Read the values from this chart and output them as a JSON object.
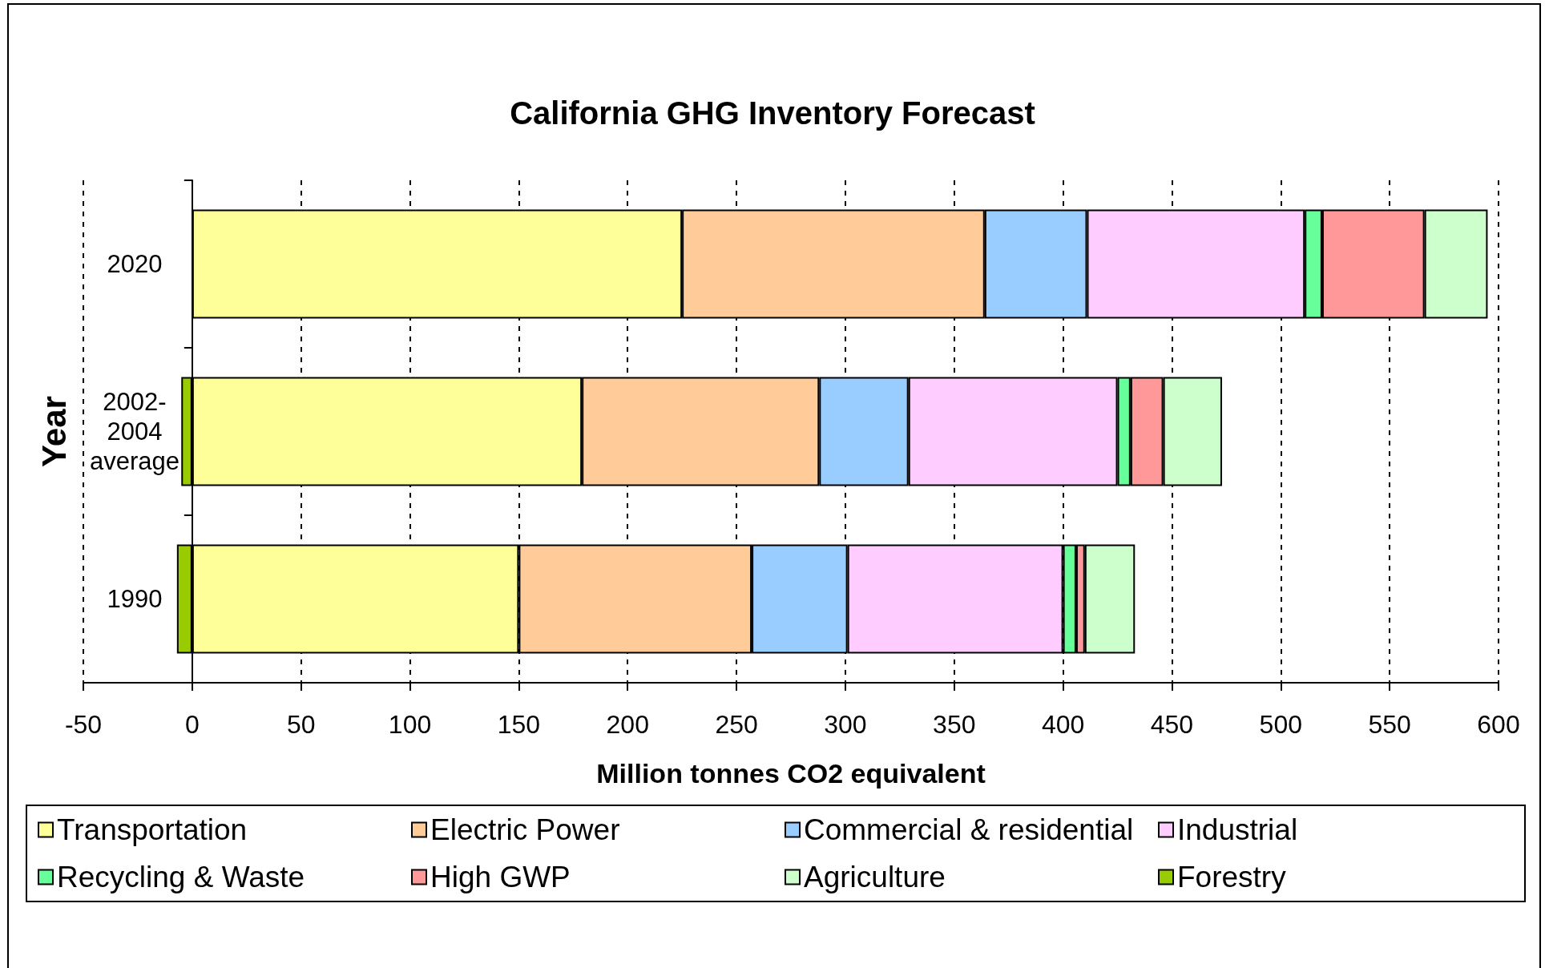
{
  "chart_data": {
    "type": "bar",
    "orientation": "horizontal",
    "stacked": true,
    "title": "California GHG Inventory Forecast",
    "xlabel": "Million tonnes CO2 equivalent",
    "ylabel": "Year",
    "categories": [
      "2020",
      "2002-2004 average",
      "1990"
    ],
    "series": [
      {
        "name": "Transportation",
        "color": "#ffff99",
        "values": [
          225,
          179,
          150
        ]
      },
      {
        "name": "Electric Power",
        "color": "#ffcc99",
        "values": [
          139,
          109,
          107
        ]
      },
      {
        "name": "Commercial & residential",
        "color": "#99ccff",
        "values": [
          47,
          41,
          44
        ]
      },
      {
        "name": "Industrial",
        "color": "#ffccff",
        "values": [
          100,
          96,
          99
        ]
      },
      {
        "name": "Recycling & Waste",
        "color": "#66ff99",
        "values": [
          8,
          6,
          6
        ]
      },
      {
        "name": "High GWP",
        "color": "#ff9999",
        "values": [
          47,
          15,
          4
        ]
      },
      {
        "name": "Agriculture",
        "color": "#ccffcc",
        "values": [
          29,
          27,
          23
        ]
      },
      {
        "name": "Forestry",
        "color": "#99cc00",
        "values": [
          null,
          -5,
          -7
        ]
      }
    ],
    "xlim": [
      -50,
      600
    ],
    "xticks": [
      -50,
      0,
      50,
      100,
      150,
      200,
      250,
      300,
      350,
      400,
      450,
      500,
      550,
      600
    ],
    "grid": "x",
    "legend": "bottom"
  }
}
